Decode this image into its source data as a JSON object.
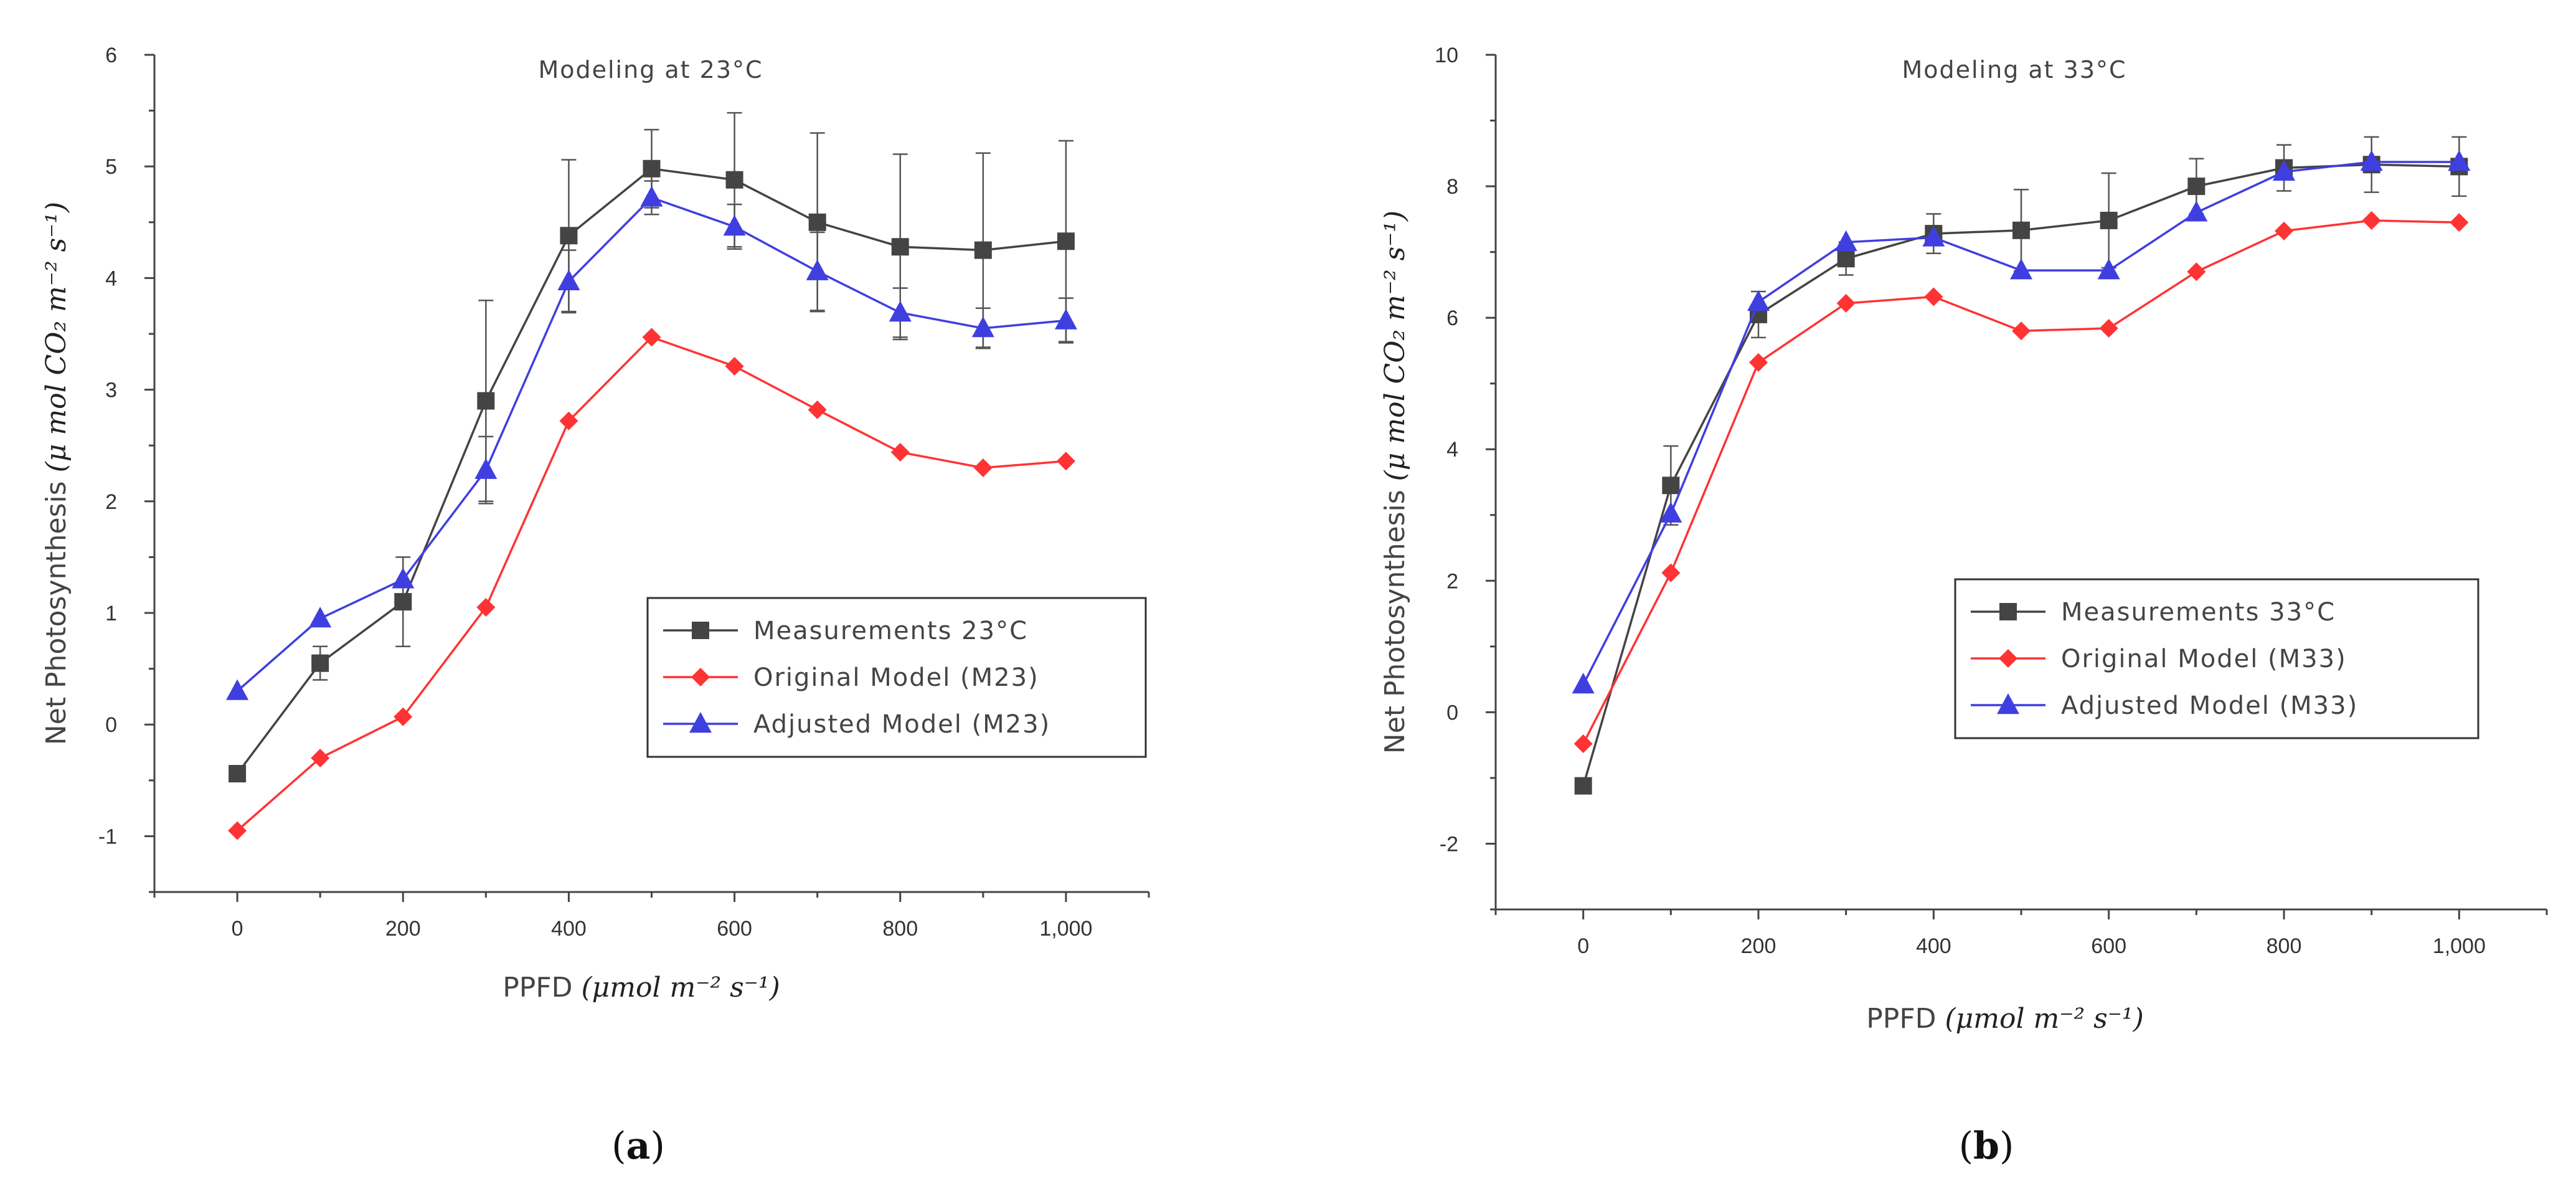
{
  "chart_data": [
    {
      "type": "line",
      "title": "Modeling at 23°C",
      "xlabel": "PPFD",
      "xlabel_units": "(μmol m⁻² s⁻¹)",
      "ylabel": "Net Photosynthesis",
      "ylabel_units": "(μ mol CO₂ m⁻² s⁻¹)",
      "xlim": [
        -100,
        1100
      ],
      "ylim": [
        -1.5,
        6
      ],
      "xticks": [
        0,
        200,
        400,
        600,
        800,
        1000
      ],
      "xtick_labels": [
        "0",
        "200",
        "400",
        "600",
        "800",
        "1,000"
      ],
      "yticks": [
        -1,
        0,
        1,
        2,
        3,
        4,
        5,
        6
      ],
      "ytick_labels": [
        "-1",
        "0",
        "1",
        "2",
        "3",
        "4",
        "5",
        "6"
      ],
      "x": [
        0,
        100,
        200,
        300,
        400,
        500,
        600,
        700,
        800,
        900,
        1000
      ],
      "legend_position": "center-right",
      "series": [
        {
          "name": "Measurements 23°C",
          "color": "#444444",
          "marker": "square",
          "values": [
            -0.44,
            0.55,
            1.1,
            2.9,
            4.38,
            4.98,
            4.88,
            4.5,
            4.28,
            4.25,
            4.33
          ],
          "error": [
            0,
            0.15,
            0.4,
            0.9,
            0.68,
            0.35,
            0.6,
            0.8,
            0.83,
            0.87,
            0.9
          ]
        },
        {
          "name": "Original Model (M23)",
          "color": "#ff3333",
          "marker": "diamond",
          "values": [
            -0.95,
            -0.3,
            0.07,
            1.05,
            2.72,
            3.47,
            3.21,
            2.82,
            2.44,
            2.3,
            2.36
          ]
        },
        {
          "name": "Adjusted Model (M23)",
          "color": "#3f3fe0",
          "marker": "triangle",
          "values": [
            0.3,
            0.95,
            1.3,
            2.28,
            3.97,
            4.72,
            4.46,
            4.06,
            3.69,
            3.55,
            3.62
          ],
          "error": [
            0,
            0,
            0,
            0.3,
            0.28,
            0.15,
            0.2,
            0.35,
            0.22,
            0.18,
            0.2
          ]
        }
      ],
      "panel_label": "a"
    },
    {
      "type": "line",
      "title": "Modeling at 33°C",
      "xlabel": "PPFD",
      "xlabel_units": "(μmol m⁻² s⁻¹)",
      "ylabel": "Net Photosynthesis",
      "ylabel_units": "(μ mol CO₂ m⁻² s⁻¹)",
      "xlim": [
        -100,
        1100
      ],
      "ylim": [
        -3,
        10
      ],
      "xticks": [
        0,
        200,
        400,
        600,
        800,
        1000
      ],
      "xtick_labels": [
        "0",
        "200",
        "400",
        "600",
        "800",
        "1,000"
      ],
      "yticks": [
        -2,
        0,
        2,
        4,
        6,
        8,
        10
      ],
      "ytick_labels": [
        "-2",
        "0",
        "2",
        "4",
        "6",
        "8",
        "10"
      ],
      "x": [
        0,
        100,
        200,
        300,
        400,
        500,
        600,
        700,
        800,
        900,
        1000
      ],
      "legend_position": "center-right",
      "series": [
        {
          "name": "Measurements 33°C",
          "color": "#444444",
          "marker": "square",
          "values": [
            -1.12,
            3.45,
            6.05,
            6.9,
            7.28,
            7.33,
            7.48,
            8.0,
            8.28,
            8.33,
            8.3
          ],
          "error": [
            0,
            0.6,
            0.35,
            0.25,
            0.3,
            0.62,
            0.72,
            0.42,
            0.35,
            0.42,
            0.45
          ]
        },
        {
          "name": "Original Model (M33)",
          "color": "#ff3333",
          "marker": "diamond",
          "values": [
            -0.48,
            2.12,
            5.32,
            6.22,
            6.32,
            5.8,
            5.84,
            6.7,
            7.32,
            7.48,
            7.45
          ]
        },
        {
          "name": "Adjusted Model (M33)",
          "color": "#3f3fe0",
          "marker": "triangle",
          "values": [
            0.42,
            3.02,
            6.24,
            7.15,
            7.22,
            6.72,
            6.72,
            7.6,
            8.22,
            8.37,
            8.37
          ]
        }
      ],
      "panel_label": "b"
    }
  ]
}
